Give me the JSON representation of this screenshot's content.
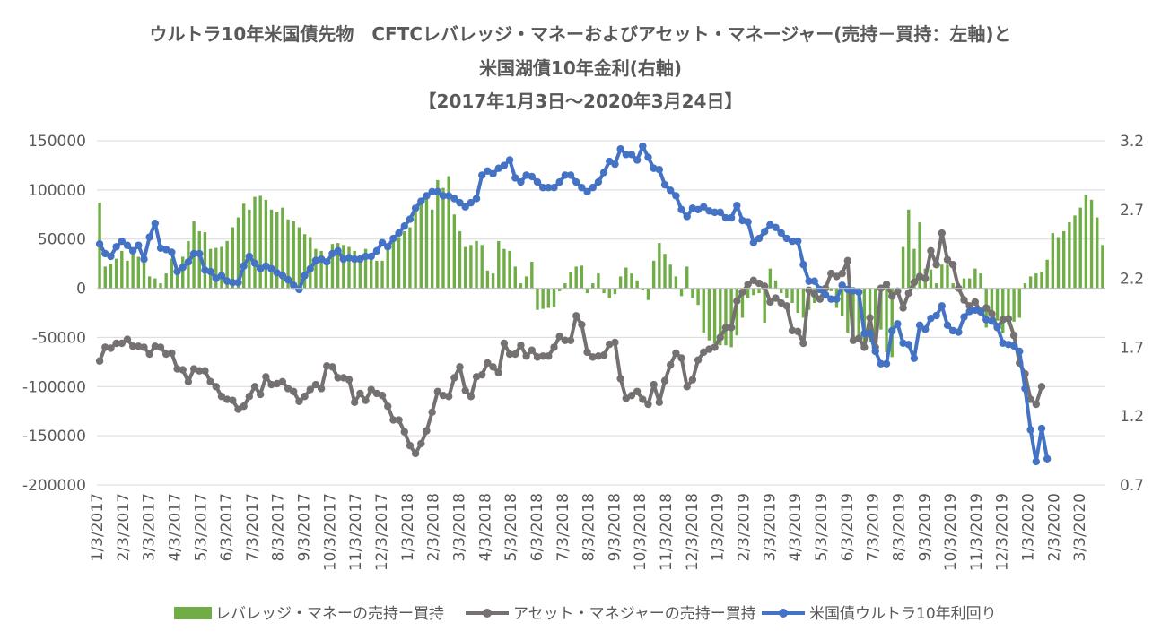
{
  "chart_data": {
    "type": "bar",
    "title_lines": [
      "ウルトラ10年米国債先物　CFTCレバレッジ・マネーおよびアセット・マネージャー(売持－買持：左軸)と",
      "米国湖債10年金利(右軸)",
      "【2017年1月3日～2020年3月24日】"
    ],
    "x_tick_labels": [
      "1/3/2017",
      "2/3/2017",
      "3/3/2017",
      "4/3/2017",
      "5/3/2017",
      "6/3/2017",
      "7/3/2017",
      "8/3/2017",
      "9/3/2017",
      "10/3/2017",
      "11/3/2017",
      "12/3/2017",
      "1/3/2018",
      "2/3/2018",
      "3/3/2018",
      "4/3/2018",
      "5/3/2018",
      "6/3/2018",
      "7/3/2018",
      "8/3/2018",
      "9/3/2018",
      "10/3/2018",
      "11/3/2018",
      "12/3/2018",
      "1/3/2019",
      "2/3/2019",
      "3/3/2019",
      "4/3/2019",
      "5/3/2019",
      "6/3/2019",
      "7/3/2019",
      "8/3/2019",
      "9/3/2019",
      "10/3/2019",
      "11/3/2019",
      "12/3/2019",
      "1/3/2020",
      "2/3/2020",
      "3/3/2020"
    ],
    "y_left_ticks": [
      "150000",
      "100000",
      "50000",
      "0",
      "-50000",
      "-100000",
      "-150000",
      "-200000"
    ],
    "y_right_ticks": [
      "3.2",
      "2.7",
      "2.2",
      "1.7",
      "1.2",
      "0.7"
    ],
    "ylim_left": [
      -200000,
      150000
    ],
    "ylim_right": [
      0.7,
      3.2
    ],
    "grid": true,
    "legend_position": "bottom",
    "colors": {
      "leveraged": "#70ad47",
      "asset": "#767171",
      "yield": "#4472c4",
      "text": "#595959",
      "grid": "#d9d9d9"
    },
    "series": [
      {
        "name": "レバレッジ・マネーの売持ー買持",
        "kind": "bar",
        "axis": "left",
        "values": [
          87000,
          22000,
          25000,
          30000,
          38000,
          28000,
          38000,
          32000,
          30000,
          12000,
          10000,
          5000,
          15000,
          30000,
          20000,
          32000,
          48000,
          68000,
          58000,
          57000,
          40000,
          41000,
          42000,
          48000,
          62000,
          72000,
          86000,
          80000,
          93000,
          94000,
          90000,
          80000,
          78000,
          82000,
          70000,
          68000,
          62000,
          55000,
          52000,
          40000,
          38000,
          30000,
          45000,
          46000,
          44000,
          42000,
          38000,
          32000,
          40000,
          30000,
          28000,
          28000,
          45000,
          48000,
          52000,
          58000,
          62000,
          80000,
          88000,
          92000,
          80000,
          110000,
          102000,
          114000,
          75000,
          58000,
          42000,
          44000,
          48000,
          44000,
          18000,
          15000,
          48000,
          40000,
          38000,
          22000,
          5000,
          12000,
          27000,
          -22000,
          -21000,
          -20000,
          -19000,
          -3000,
          5000,
          16000,
          22000,
          23000,
          -5000,
          5000,
          15000,
          -5000,
          -10000,
          -6000,
          12000,
          21000,
          15000,
          8000,
          -2000,
          -12000,
          28000,
          46000,
          35000,
          24000,
          12000,
          -8000,
          22000,
          -10000,
          -17000,
          -45000,
          -53000,
          -56000,
          -58000,
          -58000,
          -60000,
          -48000,
          -30000,
          -10000,
          -7000,
          -5000,
          -35000,
          20000,
          8000,
          -5000,
          -10000,
          -15000,
          -25000,
          -30000,
          -22000,
          -15000,
          -5000,
          -8000,
          -3000,
          -20000,
          -28000,
          -45000,
          -54000,
          -52000,
          -58000,
          -55000,
          -50000,
          -42000,
          -65000,
          -70000,
          -2000,
          42000,
          80000,
          40000,
          67000,
          20000,
          19000,
          5000,
          24000,
          24000,
          5000,
          5000,
          10000,
          10000,
          20000,
          15000,
          -40000,
          -35000,
          -33000,
          -46000,
          -37000,
          -34000,
          -30000,
          5000,
          12000,
          15000,
          17000,
          29000,
          56000,
          52000,
          58000,
          67000,
          74000,
          82000,
          95000,
          90000,
          72000,
          44000
        ]
      },
      {
        "name": "アセット・マネジャーの売持ー買持",
        "kind": "line",
        "axis": "left",
        "values": [
          -74000,
          -60000,
          -61000,
          -56000,
          -56000,
          -52000,
          -59000,
          -59000,
          -60000,
          -67000,
          -59000,
          -60000,
          -67000,
          -66000,
          -82000,
          -83000,
          -95000,
          -82000,
          -84000,
          -84000,
          -95000,
          -100000,
          -110000,
          -113000,
          -114000,
          -123000,
          -120000,
          -110000,
          -100000,
          -108000,
          -90000,
          -98000,
          -97000,
          -95000,
          -102000,
          -105000,
          -115000,
          -110000,
          -103000,
          -98000,
          -102000,
          -79000,
          -80000,
          -91000,
          -91000,
          -93000,
          -116000,
          -107000,
          -114000,
          -103000,
          -107000,
          -109000,
          -120000,
          -134000,
          -134000,
          -146000,
          -160000,
          -168000,
          -158000,
          -145000,
          -126000,
          -105000,
          -109000,
          -110000,
          -91000,
          -80000,
          -104000,
          -110000,
          -90000,
          -88000,
          -76000,
          -80000,
          -86000,
          -56000,
          -67000,
          -67000,
          -58000,
          -69000,
          -63000,
          -70000,
          -69000,
          -69000,
          -60000,
          -49000,
          -53000,
          -53000,
          -28000,
          -37000,
          -65000,
          -70000,
          -69000,
          -68000,
          -57000,
          -55000,
          -92000,
          -112000,
          -109000,
          -105000,
          -113000,
          -118000,
          -98000,
          -116000,
          -94000,
          -78000,
          -66000,
          -71000,
          -100000,
          -93000,
          -73000,
          -65000,
          -62000,
          -60000,
          -50000,
          -40000,
          -40000,
          -13000,
          -4000,
          4000,
          8000,
          5000,
          2000,
          -14000,
          -10000,
          -15000,
          -18000,
          -43000,
          -44000,
          -56000,
          -2000,
          -6000,
          -11000,
          0,
          15000,
          12000,
          15000,
          28000,
          -53000,
          -51000,
          -60000,
          -30000,
          -60000,
          0,
          4000,
          -8000,
          -3000,
          -20000,
          -5000,
          6000,
          12000,
          10000,
          38000,
          24000,
          56000,
          29000,
          24000,
          0,
          -12000,
          -18000,
          -14000,
          -24000,
          -20000,
          -26000,
          -40000,
          -32000,
          -31000,
          -48000,
          -76000,
          -87000,
          -113000,
          -118000,
          -100000
        ]
      },
      {
        "name": "米国債ウルトラ10年利回り",
        "kind": "line",
        "axis": "right",
        "values": [
          2.45,
          2.38,
          2.36,
          2.43,
          2.47,
          2.44,
          2.4,
          2.44,
          2.34,
          2.5,
          2.6,
          2.42,
          2.41,
          2.39,
          2.25,
          2.28,
          2.32,
          2.38,
          2.38,
          2.26,
          2.25,
          2.2,
          2.22,
          2.18,
          2.17,
          2.17,
          2.29,
          2.36,
          2.31,
          2.27,
          2.29,
          2.27,
          2.24,
          2.22,
          2.19,
          2.15,
          2.12,
          2.22,
          2.27,
          2.33,
          2.34,
          2.32,
          2.38,
          2.4,
          2.34,
          2.35,
          2.34,
          2.34,
          2.36,
          2.36,
          2.4,
          2.46,
          2.43,
          2.49,
          2.53,
          2.58,
          2.63,
          2.71,
          2.76,
          2.8,
          2.83,
          2.83,
          2.8,
          2.8,
          2.78,
          2.75,
          2.72,
          2.75,
          2.78,
          2.95,
          2.98,
          2.96,
          3.0,
          3.02,
          3.06,
          2.93,
          2.9,
          2.95,
          2.94,
          2.9,
          2.86,
          2.86,
          2.86,
          2.9,
          2.95,
          2.95,
          2.9,
          2.86,
          2.83,
          2.86,
          2.9,
          2.97,
          3.05,
          3.03,
          3.14,
          3.1,
          3.1,
          3.06,
          3.16,
          3.08,
          3.0,
          2.99,
          2.88,
          2.84,
          2.8,
          2.7,
          2.65,
          2.71,
          2.7,
          2.72,
          2.69,
          2.68,
          2.68,
          2.64,
          2.64,
          2.73,
          2.62,
          2.61,
          2.46,
          2.49,
          2.54,
          2.59,
          2.57,
          2.53,
          2.49,
          2.47,
          2.47,
          2.3,
          2.18,
          2.18,
          2.12,
          2.08,
          2.05,
          2.05,
          2.15,
          2.12,
          2.11,
          2.1,
          1.8,
          1.8,
          1.67,
          1.58,
          1.58,
          1.82,
          1.87,
          1.73,
          1.72,
          1.62,
          1.86,
          1.83,
          1.91,
          1.93,
          2.0,
          1.86,
          1.82,
          1.81,
          1.92,
          1.96,
          1.97,
          1.96,
          1.9,
          1.89,
          1.85,
          1.73,
          1.72,
          1.71,
          1.67,
          1.4,
          1.1,
          0.87,
          1.11,
          0.89
        ]
      }
    ]
  }
}
